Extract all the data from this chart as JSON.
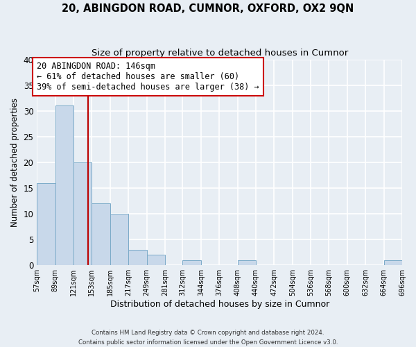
{
  "title": "20, ABINGDON ROAD, CUMNOR, OXFORD, OX2 9QN",
  "subtitle": "Size of property relative to detached houses in Cumnor",
  "xlabel": "Distribution of detached houses by size in Cumnor",
  "ylabel": "Number of detached properties",
  "bar_edges": [
    57,
    89,
    121,
    153,
    185,
    217,
    249,
    281,
    312,
    344,
    376,
    408,
    440,
    472,
    504,
    536,
    568,
    600,
    632,
    664,
    696
  ],
  "bar_heights": [
    16,
    31,
    20,
    12,
    10,
    3,
    2,
    0,
    1,
    0,
    0,
    1,
    0,
    0,
    0,
    0,
    0,
    0,
    0,
    1
  ],
  "bar_color": "#c8d8ea",
  "bar_edgecolor": "#7aaac8",
  "vline_x": 146,
  "vline_color": "#bb0000",
  "ylim": [
    0,
    40
  ],
  "annotation_line1": "20 ABINGDON ROAD: 146sqm",
  "annotation_line2": "← 61% of detached houses are smaller (60)",
  "annotation_line3": "39% of semi-detached houses are larger (38) →",
  "annotation_fontsize": 8.5,
  "footer_line1": "Contains HM Land Registry data © Crown copyright and database right 2024.",
  "footer_line2": "Contains public sector information licensed under the Open Government Licence v3.0.",
  "bg_color": "#e8eef4",
  "grid_color": "#ffffff",
  "title_fontsize": 10.5,
  "subtitle_fontsize": 9.5,
  "yticks": [
    0,
    5,
    10,
    15,
    20,
    25,
    30,
    35,
    40
  ]
}
